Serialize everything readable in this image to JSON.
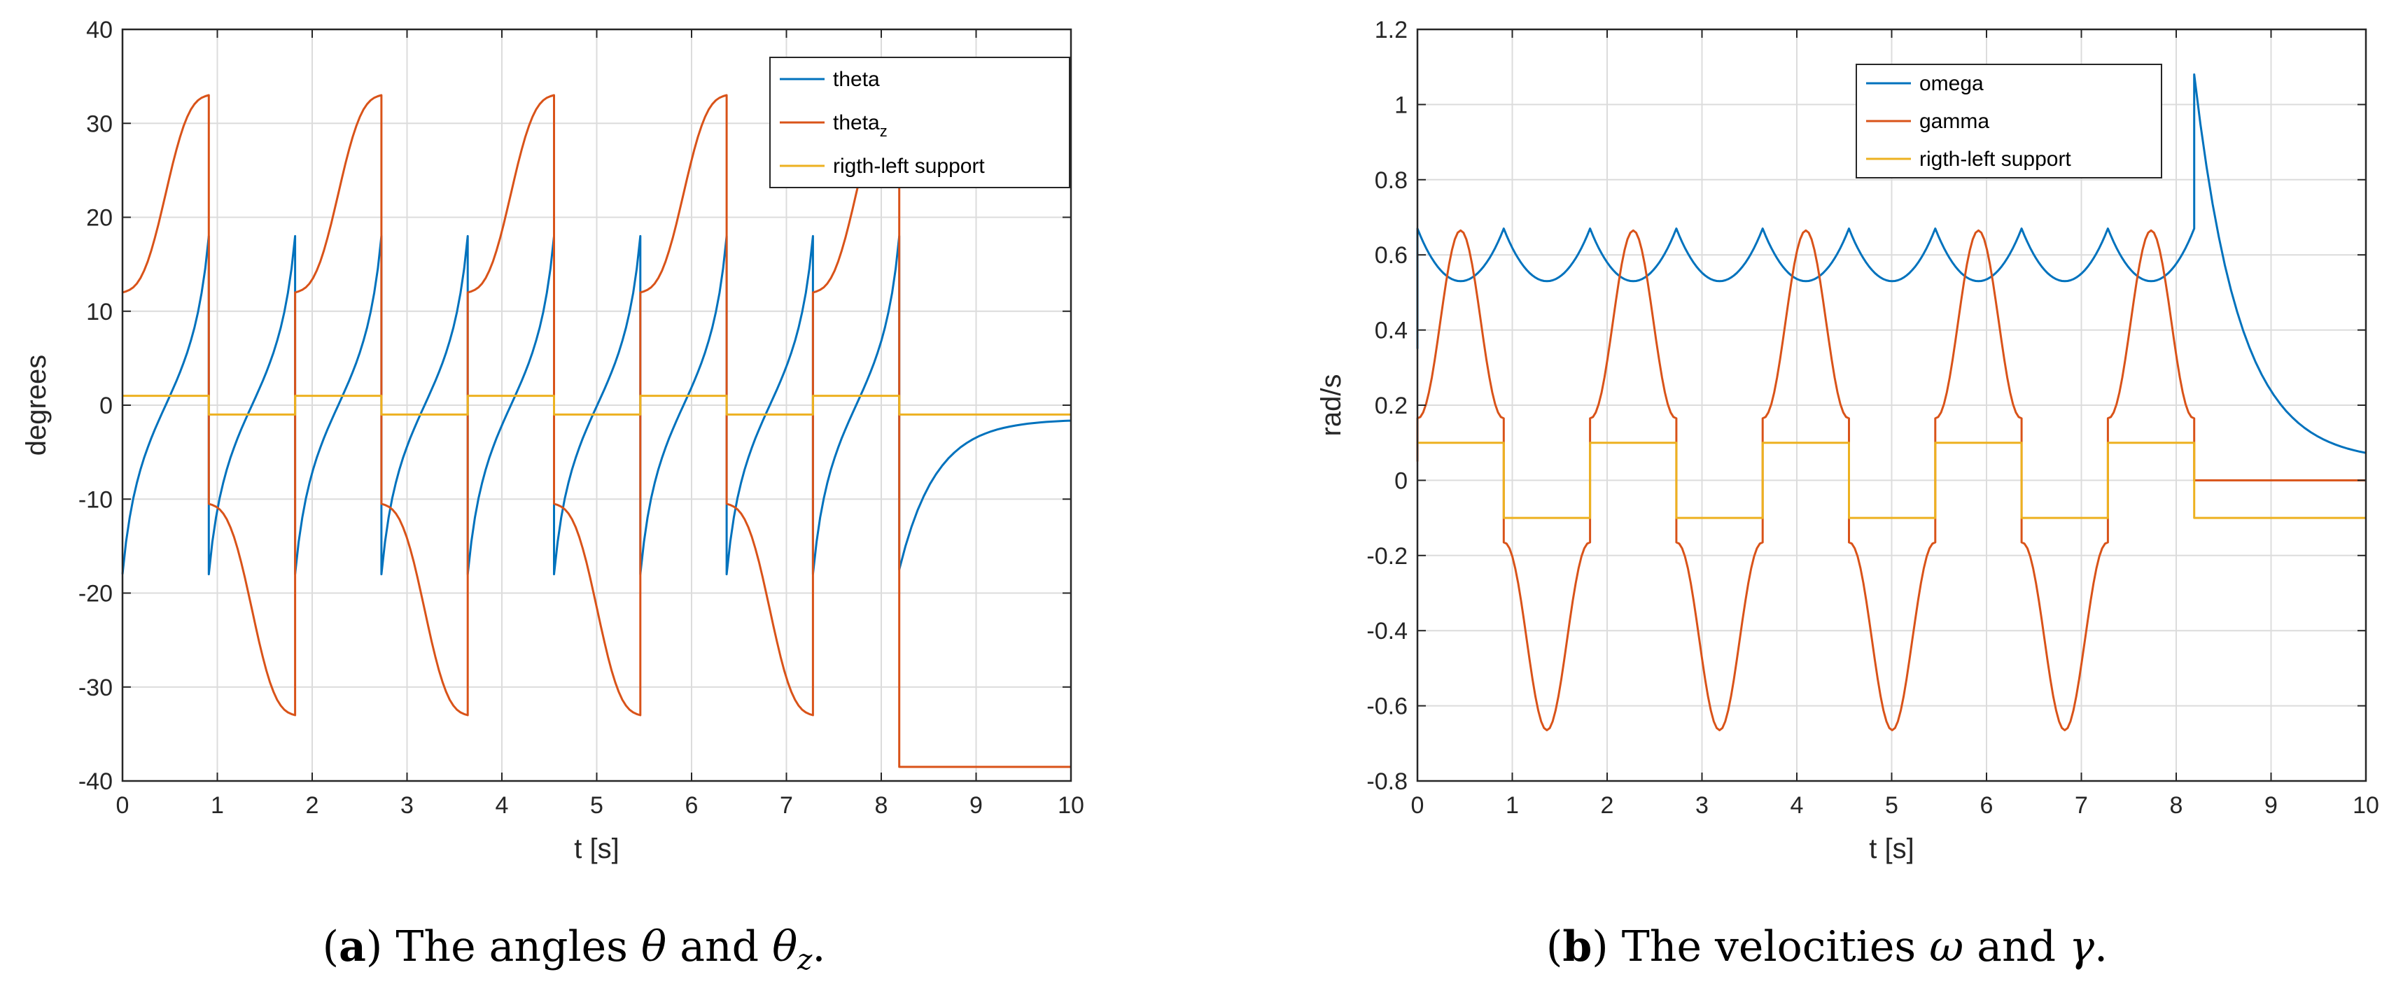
{
  "colors": {
    "blue": "#0072BD",
    "orange": "#D95319",
    "yellow": "#EDB120"
  },
  "chart_data": [
    {
      "id": "a",
      "type": "line",
      "xlabel": "t [s]",
      "ylabel": "degrees",
      "xlim": [
        0,
        10
      ],
      "ylim": [
        -40,
        40
      ],
      "xticks": [
        "0",
        "1",
        "2",
        "3",
        "4",
        "5",
        "6",
        "7",
        "8",
        "9",
        "10"
      ],
      "yticks": [
        "-40",
        "-30",
        "-20",
        "-10",
        "0",
        "10",
        "20",
        "30",
        "40"
      ],
      "grid": true,
      "legend_position": "top-right",
      "step_period": 0.91,
      "steps": 10,
      "series": [
        {
          "name": "theta",
          "legend_main": "theta",
          "legend_sub": "",
          "color": "#0072BD",
          "values_per_step": {
            "start": -18,
            "end": 18
          },
          "final_decay": {
            "from": -17.5,
            "to": -1.5
          }
        },
        {
          "name": "theta_z",
          "legend_main": "theta",
          "legend_sub": "z",
          "color": "#D95319",
          "values_per_step": {
            "odd_start": 12,
            "odd_end": 33,
            "even_start": -10.5,
            "even_end": -33
          },
          "final_value": -38.5
        },
        {
          "name": "rigth-left support",
          "legend_main": "rigth-left support",
          "legend_sub": "",
          "color": "#EDB120",
          "levels": [
            1,
            -1
          ]
        }
      ]
    },
    {
      "id": "b",
      "type": "line",
      "xlabel": "t [s]",
      "ylabel": "rad/s",
      "xlim": [
        0,
        10
      ],
      "ylim": [
        -0.8,
        1.2
      ],
      "xticks": [
        "0",
        "1",
        "2",
        "3",
        "4",
        "5",
        "6",
        "7",
        "8",
        "9",
        "10"
      ],
      "yticks": [
        "-0.8",
        "-0.6",
        "-0.4",
        "-0.2",
        "0",
        "0.2",
        "0.4",
        "0.6",
        "0.8",
        "1",
        "1.2"
      ],
      "grid": true,
      "legend_position": "top-right",
      "step_period": 0.91,
      "steps": 10,
      "series": [
        {
          "name": "omega",
          "legend_main": "omega",
          "legend_sub": "",
          "color": "#0072BD",
          "peak": 1.08,
          "min": 0.53,
          "final_value": 0.05
        },
        {
          "name": "gamma",
          "legend_main": "gamma",
          "legend_sub": "",
          "color": "#D95319",
          "peak": 0.665,
          "min": -0.665,
          "edge": 0.165
        },
        {
          "name": "rigth-left support",
          "legend_main": "rigth-left support",
          "legend_sub": "",
          "color": "#EDB120",
          "levels": [
            0.1,
            -0.1
          ]
        }
      ]
    }
  ],
  "captions": {
    "a": {
      "label": "a",
      "open": "(",
      "close": ")",
      "text1": " The angles ",
      "sym1": "θ",
      "text2": " and ",
      "sym2": "θ",
      "sym2_sub": "z",
      "end": "."
    },
    "b": {
      "label": "b",
      "open": "(",
      "close": ")",
      "text1": " The velocities ",
      "sym1": "ω",
      "text2": " and ",
      "sym2": "γ",
      "end": "."
    }
  }
}
